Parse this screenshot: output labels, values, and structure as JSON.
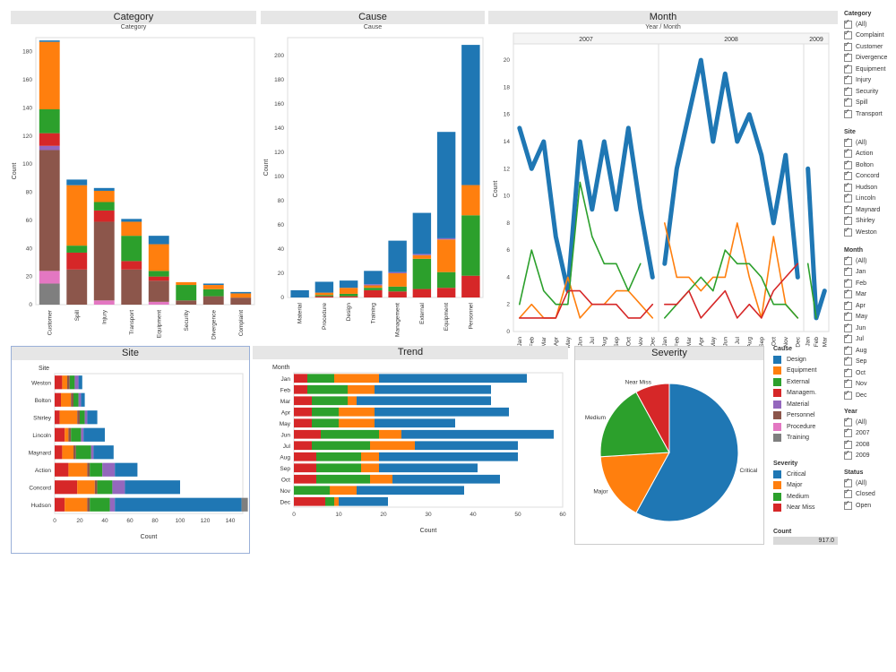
{
  "colors": {
    "Design": "#1f77b4",
    "Equipment": "#ff7f0e",
    "External": "#2ca02c",
    "Managem.": "#d62728",
    "Material": "#9467bd",
    "Personnel": "#8c564b",
    "Procedure": "#e377c2",
    "Training": "#7f7f7f",
    "Critical": "#1f77b4",
    "Major": "#ff7f0e",
    "Medium": "#2ca02c",
    "Near Miss": "#d62728",
    "grey": "#7f7f7f",
    "pink": "#e377c2",
    "purple": "#9467bd",
    "brown": "#8c564b",
    "red": "#d62728",
    "green": "#2ca02c",
    "orange": "#ff7f0e",
    "blue": "#1f77b4"
  },
  "panels": {
    "category": {
      "title": "Category",
      "subtitle": "Category",
      "ylabel": "Count"
    },
    "cause": {
      "title": "Cause",
      "subtitle": "Cause",
      "ylabel": "Count"
    },
    "month": {
      "title": "Month",
      "subtitle": "Year  /  Month",
      "ylabel": "Count",
      "years": [
        "2007",
        "2008",
        "2009"
      ]
    },
    "site": {
      "title": "Site",
      "ylabel": "Site",
      "xlabel": "Count"
    },
    "trend": {
      "title": "Trend",
      "ylabel": "Month",
      "xlabel": "Count"
    },
    "severity": {
      "title": "Severity"
    }
  },
  "filters": {
    "category": {
      "title": "Category",
      "items": [
        "(All)",
        "Complaint",
        "Customer",
        "Divergence",
        "Equipment",
        "Injury",
        "Security",
        "Spill",
        "Transport"
      ]
    },
    "site": {
      "title": "Site",
      "items": [
        "(All)",
        "Action",
        "Bolton",
        "Concord",
        "Hudson",
        "Lincoln",
        "Maynard",
        "Shirley",
        "Weston"
      ]
    },
    "month": {
      "title": "Month",
      "items": [
        "(All)",
        "Jan",
        "Feb",
        "Mar",
        "Apr",
        "May",
        "Jun",
        "Jul",
        "Aug",
        "Sep",
        "Oct",
        "Nov",
        "Dec"
      ]
    },
    "cause": {
      "title": "Cause",
      "items": [
        "Design",
        "Equipment",
        "External",
        "Managem.",
        "Material",
        "Personnel",
        "Procedure",
        "Training"
      ]
    },
    "year": {
      "title": "Year",
      "items": [
        "(All)",
        "2007",
        "2008",
        "2009"
      ]
    },
    "severity": {
      "title": "Severity",
      "items": [
        "Critical",
        "Major",
        "Medium",
        "Near Miss"
      ]
    },
    "status": {
      "title": "Status",
      "items": [
        "(All)",
        "Closed",
        "Open"
      ]
    },
    "count": {
      "title": "Count",
      "value": "917.0"
    }
  },
  "chart_data": [
    {
      "type": "bar",
      "name": "category",
      "ylim": [
        0,
        190
      ],
      "yticks": [
        0,
        20,
        40,
        60,
        80,
        100,
        120,
        140,
        160,
        180
      ],
      "categories": [
        "Customer",
        "Spill",
        "Injury",
        "Transport",
        "Equipment",
        "Security",
        "Divergence",
        "Complaint"
      ],
      "series": [
        {
          "name": "grey",
          "values": [
            15,
            0,
            0,
            0,
            0,
            0,
            0,
            0
          ]
        },
        {
          "name": "pink",
          "values": [
            9,
            0,
            3,
            0,
            2,
            0,
            0,
            0
          ]
        },
        {
          "name": "brown",
          "values": [
            86,
            25,
            56,
            25,
            15,
            3,
            6,
            5
          ]
        },
        {
          "name": "purple",
          "values": [
            3,
            0,
            0,
            0,
            0,
            0,
            0,
            0
          ]
        },
        {
          "name": "red",
          "values": [
            9,
            12,
            8,
            6,
            3,
            0,
            0,
            0
          ]
        },
        {
          "name": "green",
          "values": [
            17,
            5,
            6,
            18,
            4,
            11,
            5,
            0
          ]
        },
        {
          "name": "orange",
          "values": [
            48,
            43,
            8,
            10,
            19,
            2,
            3,
            3
          ]
        },
        {
          "name": "blue",
          "values": [
            1,
            4,
            2,
            2,
            6,
            0,
            1,
            1
          ]
        }
      ]
    },
    {
      "type": "bar",
      "name": "cause",
      "ylim": [
        0,
        215
      ],
      "yticks": [
        0,
        20,
        40,
        60,
        80,
        100,
        120,
        140,
        160,
        180,
        200
      ],
      "categories": [
        "Material",
        "Procedure",
        "Design",
        "Training",
        "Management",
        "External",
        "Equipment",
        "Personnel"
      ],
      "series": [
        {
          "name": "red",
          "values": [
            0,
            1,
            1,
            6,
            5,
            7,
            8,
            18
          ]
        },
        {
          "name": "green",
          "values": [
            0,
            1,
            2,
            2,
            4,
            25,
            13,
            50
          ]
        },
        {
          "name": "orange",
          "values": [
            0,
            2,
            5,
            2,
            11,
            3,
            27,
            25
          ]
        },
        {
          "name": "purple",
          "values": [
            0,
            0,
            0,
            1,
            1,
            1,
            1,
            0
          ]
        },
        {
          "name": "blue",
          "values": [
            6,
            9,
            6,
            11,
            26,
            34,
            88,
            116
          ]
        }
      ]
    },
    {
      "type": "line",
      "name": "month",
      "ylim": [
        0,
        21
      ],
      "yticks": [
        0,
        2,
        4,
        6,
        8,
        10,
        12,
        14,
        16,
        18,
        20
      ],
      "x": [
        "Jan",
        "Feb",
        "Mar",
        "Apr",
        "May",
        "Jun",
        "Jul",
        "Aug",
        "Sep",
        "Oct",
        "Nov",
        "Dec"
      ],
      "years": [
        {
          "year": "2007",
          "series": [
            {
              "name": "Critical",
              "values": [
                15,
                12,
                14,
                7,
                3,
                14,
                9,
                14,
                9,
                15,
                9,
                4
              ]
            },
            {
              "name": "Major",
              "values": [
                1,
                2,
                1,
                1,
                4,
                1,
                2,
                2,
                3,
                3,
                2,
                1
              ]
            },
            {
              "name": "Medium",
              "values": [
                2,
                6,
                3,
                2,
                2,
                11,
                7,
                5,
                5,
                3,
                5,
                null
              ]
            },
            {
              "name": "Near Miss",
              "values": [
                1,
                1,
                1,
                1,
                3,
                3,
                2,
                2,
                2,
                1,
                1,
                2
              ]
            }
          ]
        },
        {
          "year": "2008",
          "series": [
            {
              "name": "Critical",
              "values": [
                5,
                12,
                16,
                20,
                14,
                19,
                14,
                16,
                13,
                8,
                13,
                4
              ]
            },
            {
              "name": "Major",
              "values": [
                8,
                4,
                4,
                3,
                4,
                4,
                8,
                4,
                1,
                7,
                2,
                1
              ]
            },
            {
              "name": "Medium",
              "values": [
                1,
                2,
                3,
                4,
                3,
                6,
                5,
                5,
                4,
                2,
                2,
                1
              ]
            },
            {
              "name": "Near Miss",
              "values": [
                2,
                2,
                3,
                1,
                2,
                3,
                1,
                2,
                1,
                3,
                4,
                5
              ]
            }
          ]
        },
        {
          "year": "2009",
          "series": [
            {
              "name": "Critical",
              "values": [
                12,
                1,
                3
              ]
            },
            {
              "name": "Medium",
              "values": [
                5,
                1,
                null
              ]
            }
          ]
        }
      ]
    },
    {
      "type": "hbar",
      "name": "site",
      "xlim": [
        0,
        150
      ],
      "xticks": [
        0,
        20,
        40,
        60,
        80,
        100,
        120,
        140
      ],
      "categories": [
        "Weston",
        "Bolton",
        "Shirley",
        "Lincoln",
        "Maynard",
        "Action",
        "Concord",
        "Hudson"
      ],
      "series": [
        {
          "name": "Design",
          "values": [
            0,
            0,
            0,
            0,
            0,
            0,
            0,
            0
          ]
        },
        {
          "name": "red",
          "values": [
            6,
            5,
            4,
            8,
            6,
            11,
            18,
            8
          ]
        },
        {
          "name": "orange",
          "values": [
            4,
            8,
            14,
            3,
            9,
            15,
            14,
            18
          ]
        },
        {
          "name": "brown",
          "values": [
            2,
            2,
            2,
            2,
            2,
            2,
            2,
            2
          ]
        },
        {
          "name": "green",
          "values": [
            4,
            4,
            4,
            8,
            12,
            10,
            12,
            16
          ]
        },
        {
          "name": "purple",
          "values": [
            3,
            2,
            2,
            2,
            2,
            10,
            10,
            4
          ]
        },
        {
          "name": "blue",
          "values": [
            3,
            3,
            8,
            17,
            16,
            18,
            44,
            101
          ]
        },
        {
          "name": "grey",
          "values": [
            0,
            0,
            0,
            0,
            0,
            0,
            0,
            5
          ]
        }
      ]
    },
    {
      "type": "hbar",
      "name": "trend",
      "xlim": [
        0,
        60
      ],
      "xticks": [
        0,
        10,
        20,
        30,
        40,
        50,
        60
      ],
      "categories": [
        "Jan",
        "Feb",
        "Mar",
        "Apr",
        "May",
        "Jun",
        "Jul",
        "Aug",
        "Sep",
        "Oct",
        "Nov",
        "Dec"
      ],
      "series": [
        {
          "name": "red",
          "values": [
            3,
            3,
            4,
            4,
            4,
            6,
            4,
            5,
            5,
            5,
            0,
            7
          ]
        },
        {
          "name": "green",
          "values": [
            6,
            9,
            8,
            6,
            6,
            13,
            13,
            10,
            10,
            12,
            8,
            2
          ]
        },
        {
          "name": "orange",
          "values": [
            10,
            6,
            2,
            8,
            8,
            5,
            10,
            4,
            4,
            5,
            6,
            1
          ]
        },
        {
          "name": "blue",
          "values": [
            33,
            26,
            30,
            30,
            18,
            34,
            23,
            31,
            22,
            24,
            24,
            11
          ]
        }
      ]
    },
    {
      "type": "pie",
      "name": "severity",
      "labels": [
        "Critical",
        "Major",
        "Medium",
        "Near Miss"
      ],
      "values": [
        58,
        16,
        18,
        8
      ]
    }
  ]
}
